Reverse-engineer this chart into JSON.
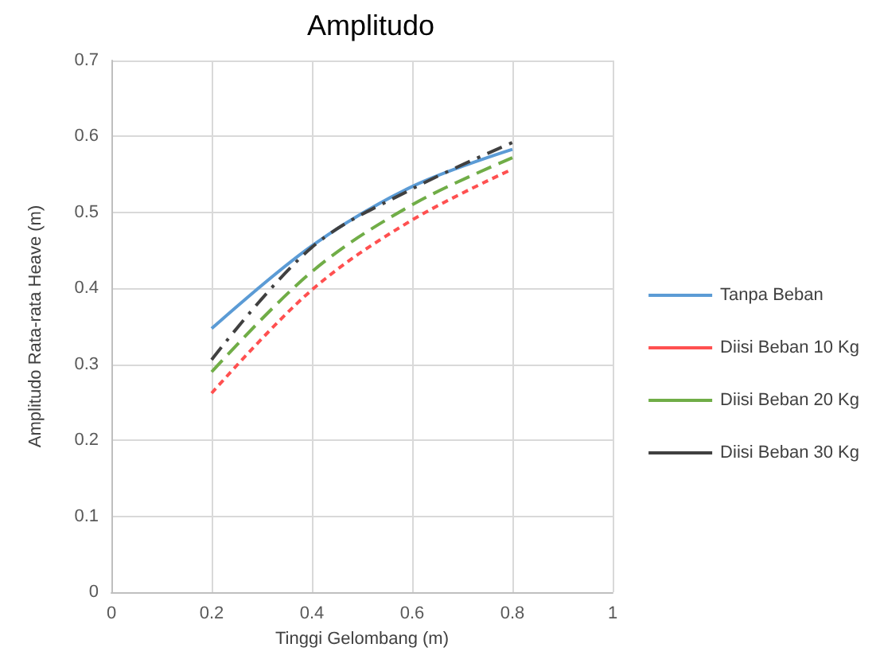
{
  "chart_data": {
    "type": "line",
    "title": "Amplitudo",
    "xlabel": "Tinggi Gelombang (m)",
    "ylabel": "Amplitudo Rata-rata Heave (m)",
    "x": [
      0.2,
      0.4,
      0.6,
      0.8
    ],
    "series": [
      {
        "name": "Tanpa Beban",
        "color": "#5b9bd5",
        "line_style": "solid",
        "values": [
          0.347,
          0.456,
          0.534,
          0.583
        ]
      },
      {
        "name": "Diisi Beban 10 Kg",
        "color": "#ff5050",
        "line_style": "dotted",
        "values": [
          0.262,
          0.398,
          0.49,
          0.557
        ]
      },
      {
        "name": "Diisi Beban 20 Kg",
        "color": "#70ad47",
        "line_style": "dashed",
        "values": [
          0.29,
          0.422,
          0.51,
          0.572
        ]
      },
      {
        "name": "Diisi Beban 30 Kg",
        "color": "#404040",
        "line_style": "dashdot",
        "values": [
          0.306,
          0.454,
          0.531,
          0.592
        ]
      }
    ],
    "xlim": [
      0,
      1
    ],
    "xticks": [
      0,
      0.2,
      0.4,
      0.6,
      0.8,
      1
    ],
    "ylim": [
      0,
      0.7
    ],
    "yticks": [
      0,
      0.1,
      0.2,
      0.3,
      0.4,
      0.5,
      0.6,
      0.7
    ],
    "grid": true,
    "legend": "right",
    "marker": "none"
  }
}
